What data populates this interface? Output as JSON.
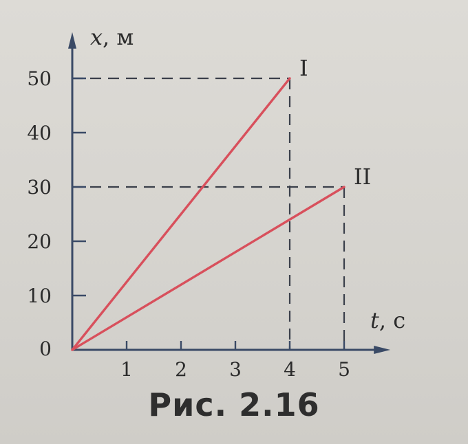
{
  "chart_data": {
    "type": "line",
    "x_axis": {
      "variable": "t",
      "unit": ", с",
      "ticks": [
        1,
        2,
        3,
        4,
        5
      ],
      "range": [
        0,
        5.8
      ]
    },
    "y_axis": {
      "variable": "x",
      "unit": ", м",
      "ticks": [
        10,
        20,
        30,
        40,
        50
      ],
      "range": [
        0,
        58
      ]
    },
    "origin_label": "0",
    "series": [
      {
        "label": "I",
        "points": [
          [
            0,
            0
          ],
          [
            4,
            50
          ]
        ],
        "color": "#d8505c"
      },
      {
        "label": "II",
        "points": [
          [
            0,
            0
          ],
          [
            5,
            30
          ]
        ],
        "color": "#d8505c"
      }
    ],
    "reference_lines": [
      {
        "x": 4,
        "y": 50
      },
      {
        "x": 5,
        "y": 30
      }
    ],
    "grid": false
  },
  "caption": "Рис. 2.16"
}
